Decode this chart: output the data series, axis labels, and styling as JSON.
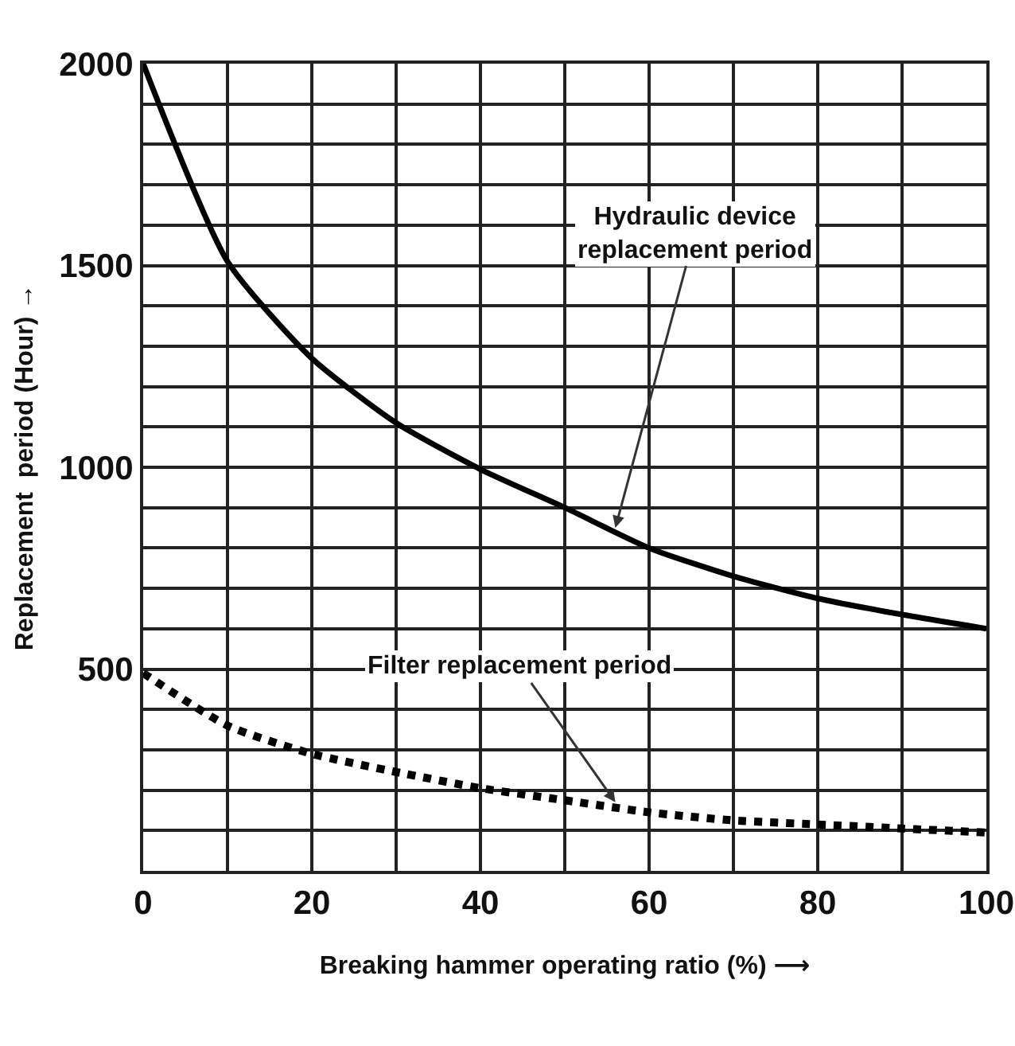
{
  "chart_data": {
    "type": "line",
    "xlabel": "Breaking hammer operating ratio (%) ⟶",
    "ylabel": "Replacement  period (Hour) →",
    "x": [
      0,
      10,
      20,
      30,
      40,
      50,
      60,
      70,
      80,
      90,
      100
    ],
    "series": [
      {
        "color": "#000000",
        "line_style": "solid",
        "values": [
          2000,
          1510,
          1270,
          1110,
          995,
          900,
          800,
          730,
          675,
          635,
          600
        ]
      },
      {
        "color": "#000000",
        "line_style": "dotted",
        "values": [
          490,
          360,
          290,
          245,
          205,
          175,
          145,
          125,
          115,
          105,
          95
        ]
      }
    ],
    "annotations": [
      {
        "text": "Hydraulic device\nreplacement period",
        "x": 56,
        "y": 850
      },
      {
        "text": "Filter replacement period",
        "x": 56,
        "y": 170
      }
    ],
    "xlim": [
      0,
      100
    ],
    "xticks": [
      0,
      {
        "value": 10,
        "label": null
      },
      20,
      {
        "value": 30,
        "label": null
      },
      40,
      {
        "value": 50,
        "label": null
      },
      60,
      {
        "value": 70,
        "label": null
      },
      80,
      {
        "value": 90,
        "label": null
      },
      100
    ],
    "ylim": [
      0,
      2000
    ],
    "yticks": [
      {
        "value": 0,
        "label": null
      },
      {
        "value": 100,
        "label": null
      },
      {
        "value": 200,
        "label": null
      },
      {
        "value": 300,
        "label": null
      },
      {
        "value": 400,
        "label": null
      },
      500,
      {
        "value": 600,
        "label": null
      },
      {
        "value": 700,
        "label": null
      },
      {
        "value": 800,
        "label": null
      },
      {
        "value": 900,
        "label": null
      },
      1000,
      {
        "value": 1100,
        "label": null
      },
      {
        "value": 1200,
        "label": null
      },
      {
        "value": 1300,
        "label": null
      },
      {
        "value": 1400,
        "label": null
      },
      1500,
      {
        "value": 1600,
        "label": null
      },
      {
        "value": 1700,
        "label": null
      },
      {
        "value": 1800,
        "label": null
      },
      {
        "value": 1900,
        "label": null
      },
      2000
    ],
    "grid": true,
    "marker": "none"
  }
}
